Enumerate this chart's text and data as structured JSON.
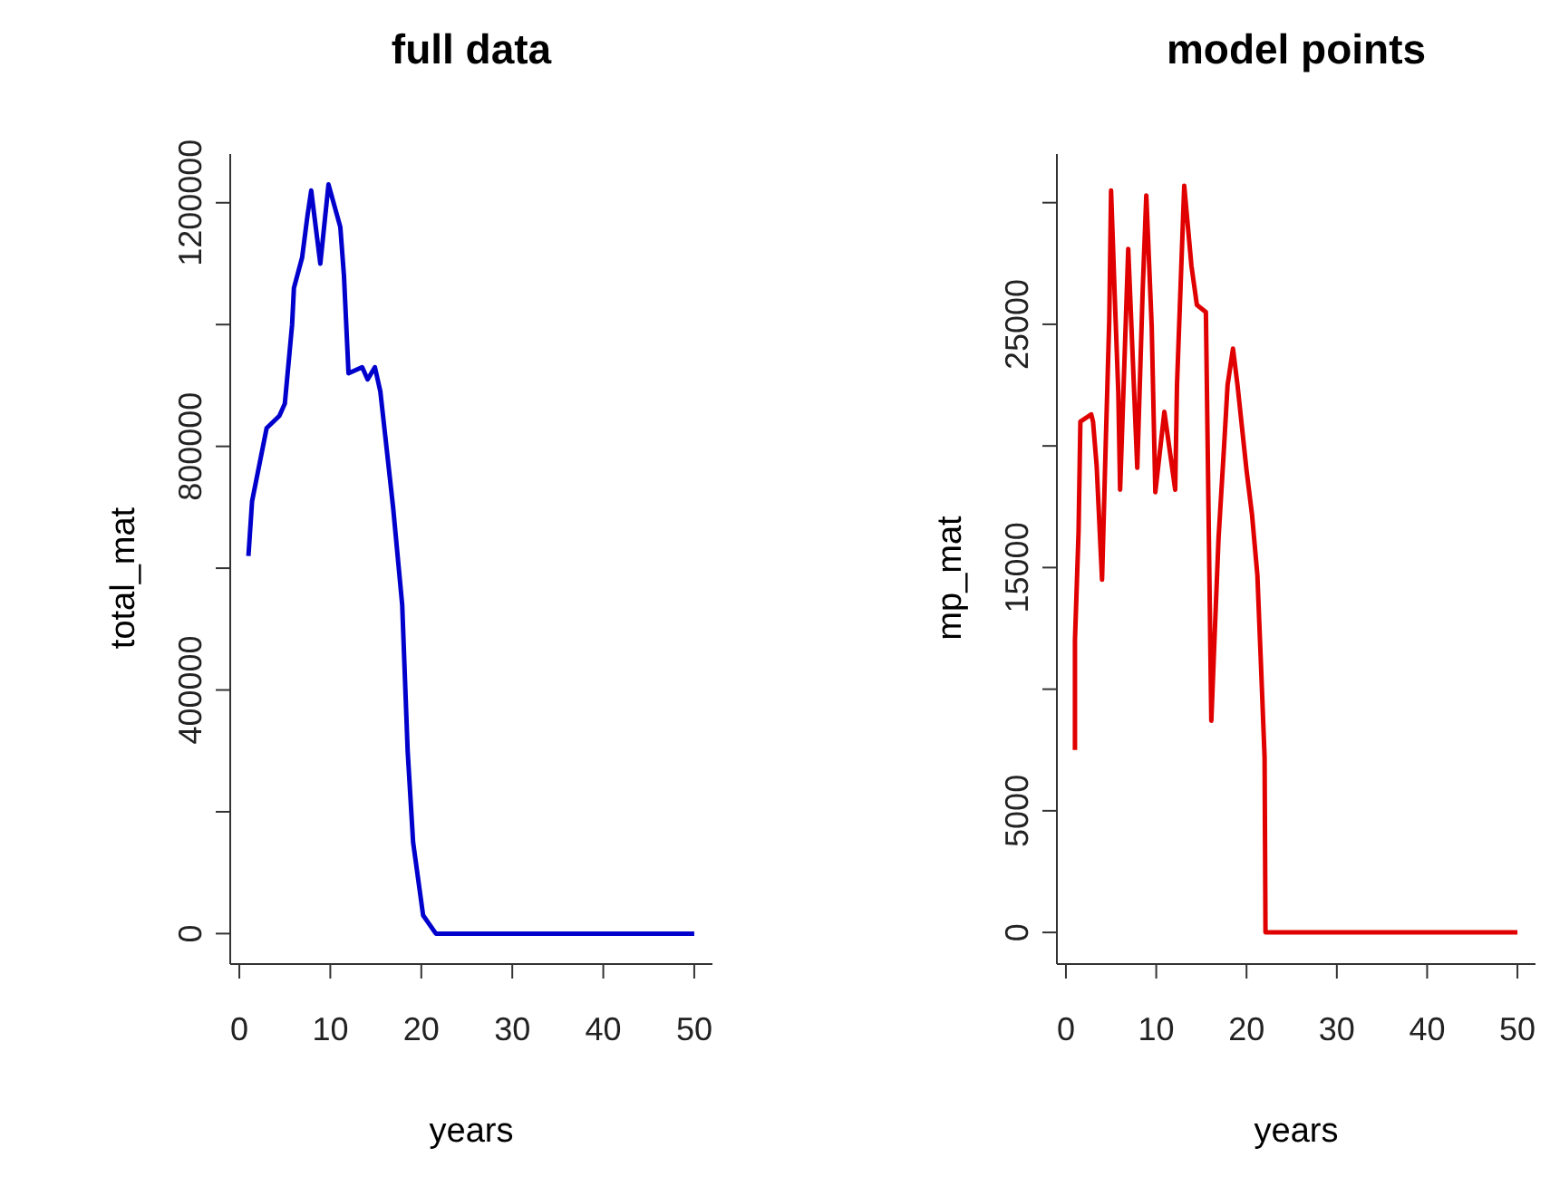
{
  "chart_data": [
    {
      "type": "line",
      "title": "full data",
      "xlabel": "years",
      "ylabel": "total_mat",
      "color": "#0000cd",
      "x": [
        1.0,
        1.4,
        3.0,
        4.4,
        5.0,
        5.8,
        6.0,
        6.9,
        7.5,
        7.9,
        8.9,
        9.8,
        11.1,
        11.5,
        12.0,
        13.5,
        14.1,
        14.9,
        15.5,
        16.9,
        17.9,
        18.5,
        19.1,
        20.2,
        21.6,
        50
      ],
      "values": [
        620000,
        710000,
        830000,
        850000,
        870000,
        1000000,
        1060000,
        1110000,
        1180000,
        1220000,
        1100000,
        1230000,
        1160000,
        1080000,
        920000,
        930000,
        910000,
        930000,
        890000,
        700000,
        540000,
        300000,
        150000,
        30000,
        0,
        0
      ],
      "xlim": [
        -1,
        52
      ],
      "ylim": [
        -50000,
        1280000
      ],
      "xticks": [
        0,
        10,
        20,
        30,
        40,
        50
      ],
      "yticks": [
        0,
        {
          "value": 200000,
          "label": null
        },
        400000,
        {
          "value": 600000,
          "label": null
        },
        800000,
        {
          "value": 1000000,
          "label": null
        },
        1200000
      ]
    },
    {
      "type": "line",
      "title": "model points",
      "xlabel": "years",
      "ylabel": "mp_mat",
      "color": "#e00000",
      "x": [
        1.0,
        1.0,
        1.4,
        1.6,
        2.8,
        3.0,
        3.4,
        4.0,
        4.4,
        4.8,
        5.0,
        5.4,
        5.8,
        6.0,
        6.9,
        7.9,
        8.5,
        8.9,
        9.5,
        9.9,
        10.9,
        12.1,
        12.3,
        13.1,
        13.9,
        14.5,
        15.5,
        15.9,
        16.1,
        16.5,
        16.9,
        17.5,
        17.9,
        18.5,
        19.0,
        20.0,
        20.6,
        21.2,
        21.6,
        22.0,
        22.1,
        50
      ],
      "values": [
        7500,
        12000,
        16500,
        21000,
        21300,
        21000,
        19200,
        14500,
        20000,
        25200,
        30500,
        26200,
        22200,
        18200,
        28100,
        19100,
        26400,
        30300,
        24900,
        18100,
        21400,
        18200,
        22500,
        30700,
        27400,
        25800,
        25500,
        14300,
        8700,
        12500,
        16200,
        19900,
        22500,
        24000,
        22500,
        19000,
        17200,
        14700,
        11000,
        7200,
        0,
        0
      ],
      "xlim": [
        -1,
        52
      ],
      "ylim": [
        -1300,
        32000
      ],
      "xticks": [
        0,
        10,
        20,
        30,
        40,
        50
      ],
      "yticks": [
        0,
        5000,
        {
          "value": 10000,
          "label": null
        },
        15000,
        {
          "value": 20000,
          "label": null
        },
        25000,
        {
          "value": 30000,
          "label": null
        }
      ]
    }
  ]
}
